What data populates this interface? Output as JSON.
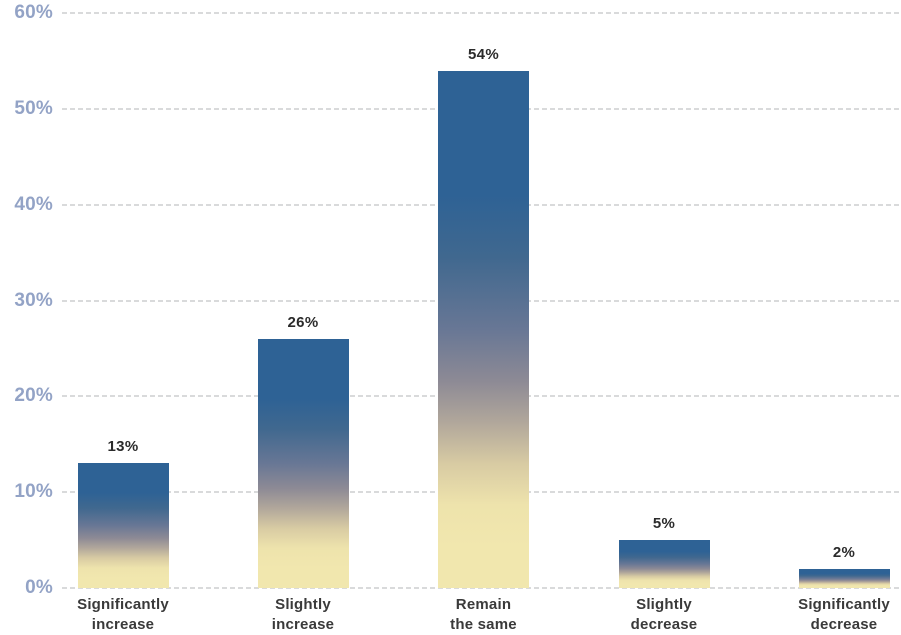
{
  "chart_data": {
    "type": "bar",
    "title": "",
    "xlabel": "",
    "ylabel": "",
    "categories": [
      "Significantly increase",
      "Slightly increase",
      "Remain the same",
      "Slightly decrease",
      "Significantly decrease"
    ],
    "category_label_lines": [
      [
        "Significantly",
        "increase"
      ],
      [
        "Slightly",
        "increase"
      ],
      [
        "Remain",
        "the same"
      ],
      [
        "Slightly",
        "decrease"
      ],
      [
        "Significantly",
        "decrease"
      ]
    ],
    "values": [
      13,
      26,
      54,
      5,
      2
    ],
    "value_labels": [
      "13%",
      "26%",
      "54%",
      "5%",
      "2%"
    ],
    "ylim": [
      0,
      60
    ],
    "y_ticks": [
      0,
      10,
      20,
      30,
      40,
      50,
      60
    ],
    "y_tick_labels": [
      "0%",
      "10%",
      "20%",
      "30%",
      "40%",
      "50%",
      "60%"
    ],
    "grid": "horizontal-dashed",
    "legend": "none",
    "colors": {
      "bar_gradient_top": "#2e6295",
      "bar_gradient_bottom": "#f1e7ae",
      "y_tick_label": "#93a3c6",
      "gridline": "#d9dadb",
      "value_label": "#2b2b2b",
      "category_label": "#3a3a3a",
      "background": "#ffffff"
    }
  }
}
